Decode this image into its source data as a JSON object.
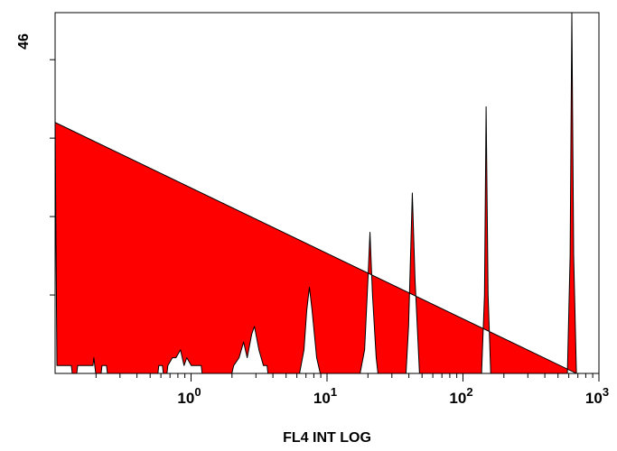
{
  "chart_data": {
    "type": "histogram",
    "x_label": "FL4 INT LOG",
    "log_x": true,
    "xlim": [
      0.1,
      1000
    ],
    "xticks": [
      {
        "value": 1,
        "label": "10",
        "exponent": "0"
      },
      {
        "value": 10,
        "label": "10",
        "exponent": "1"
      },
      {
        "value": 100,
        "label": "10",
        "exponent": "2"
      },
      {
        "value": 1000,
        "label": "10",
        "exponent": "3"
      }
    ],
    "ylim": [
      0,
      46
    ],
    "yticks": [
      10,
      20,
      30,
      40
    ],
    "color": "#ff0000",
    "x": [
      0.1,
      0.1031,
      0.1063,
      0.1316,
      0.1337,
      0.1443,
      0.1465,
      0.19,
      0.1928,
      0.1958,
      0.199,
      0.218,
      0.2213,
      0.2388,
      0.2425,
      0.5705,
      0.579,
      0.616,
      0.625,
      0.665,
      0.675,
      0.729,
      0.774,
      0.836,
      0.888,
      0.93,
      1.004,
      1.188,
      1.206,
      1.996,
      2.058,
      2.255,
      2.434,
      2.588,
      2.793,
      2.924,
      3.157,
      3.407,
      3.622,
      3.678,
      6.28,
      6.77,
      7.09,
      7.42,
      7.77,
      8.39,
      8.92,
      17.5,
      18.9,
      20.0,
      20.7,
      21.6,
      23.0,
      23.7,
      38.1,
      39.8,
      42.4,
      44.4,
      47.9,
      137,
      144,
      148,
      153,
      160,
      586,
      614,
      632,
      652,
      683
    ],
    "values": [
      32,
      1,
      1,
      1,
      0,
      0,
      1,
      1,
      2,
      1,
      0,
      0,
      1,
      1,
      0,
      0,
      1,
      1,
      0,
      0,
      1,
      2,
      2,
      3,
      1,
      2,
      1,
      1,
      0,
      0,
      1,
      2,
      4,
      2,
      5,
      6,
      3,
      1,
      1,
      0,
      0,
      3,
      8,
      11,
      8,
      2,
      0,
      0,
      3,
      12,
      18,
      10,
      2,
      0,
      0,
      6,
      23,
      12,
      0,
      0,
      10,
      34,
      10,
      0,
      0,
      15,
      46,
      15,
      0
    ]
  }
}
